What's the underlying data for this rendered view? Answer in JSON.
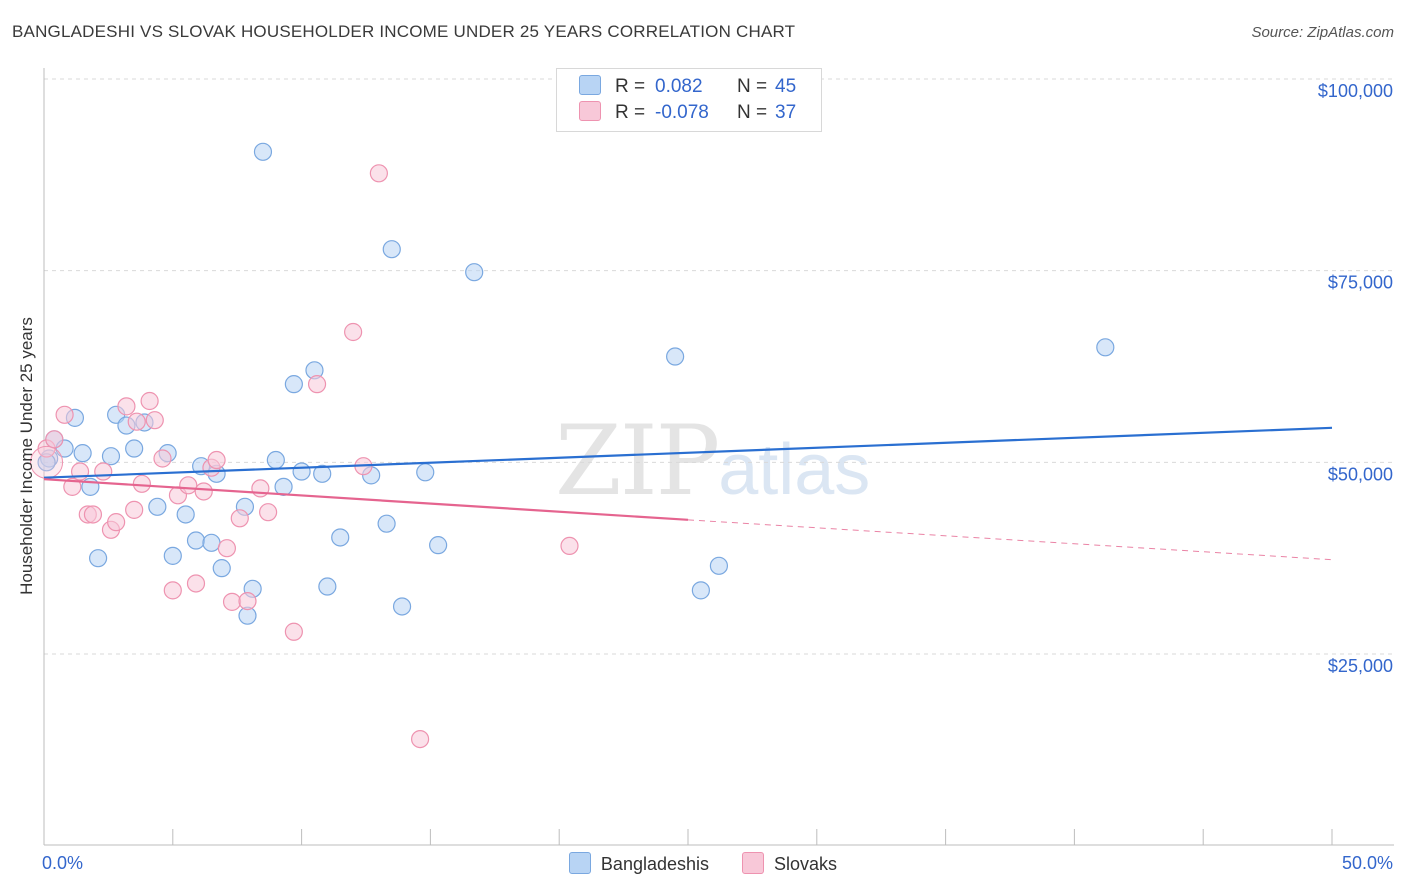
{
  "title": "BANGLADESHI VS SLOVAK HOUSEHOLDER INCOME UNDER 25 YEARS CORRELATION CHART",
  "source": "Source: ZipAtlas.com",
  "watermark": {
    "zip": "ZIP",
    "atlas": "atlas"
  },
  "legend_top": [
    {
      "r_label": "R =",
      "r_value": "0.082",
      "n_label": "N =",
      "n_value": "45"
    },
    {
      "r_label": "R =",
      "r_value": "-0.078",
      "n_label": "N =",
      "n_value": "37"
    }
  ],
  "legend_bottom": [
    "Bangladeshis",
    "Slovaks"
  ],
  "colors": {
    "blue_fill": "#b8d4f4",
    "blue_stroke": "#7aa8e0",
    "blue_line": "#2a6fd1",
    "pink_fill": "#f8c8d8",
    "pink_stroke": "#ee93b0",
    "pink_line": "#e5648f",
    "grid": "#d9d9d9",
    "axis_text": "#3366cc"
  },
  "chart_data": {
    "type": "scatter",
    "title": "BANGLADESHI VS SLOVAK HOUSEHOLDER INCOME UNDER 25 YEARS CORRELATION CHART",
    "xlabel": "",
    "ylabel": "Householder Income Under 25 years",
    "xlim": [
      0,
      50
    ],
    "ylim": [
      0,
      105000
    ],
    "x_tick_labels": [
      "0.0%",
      "50.0%"
    ],
    "y_ticks": [
      25000,
      50000,
      75000,
      100000
    ],
    "y_tick_labels": [
      "$25,000",
      "$50,000",
      "$75,000",
      "$100,000"
    ],
    "grid": true,
    "legend": "top-center",
    "series": [
      {
        "name": "Bangladeshis",
        "r": 0.082,
        "n": 45,
        "trend": {
          "x": [
            0,
            50
          ],
          "y": [
            48000,
            54500
          ]
        },
        "points": [
          [
            0.2,
            50500
          ],
          [
            0.4,
            53000
          ],
          [
            0.8,
            51800
          ],
          [
            1.2,
            55800
          ],
          [
            1.5,
            51200
          ],
          [
            1.8,
            46800
          ],
          [
            2.1,
            37500
          ],
          [
            2.6,
            50800
          ],
          [
            2.8,
            56200
          ],
          [
            3.2,
            54800
          ],
          [
            3.5,
            51800
          ],
          [
            3.9,
            55200
          ],
          [
            4.4,
            44200
          ],
          [
            4.8,
            51200
          ],
          [
            5.0,
            37800
          ],
          [
            5.5,
            43200
          ],
          [
            5.9,
            39800
          ],
          [
            6.1,
            49500
          ],
          [
            6.5,
            39500
          ],
          [
            6.7,
            48500
          ],
          [
            6.9,
            36200
          ],
          [
            7.8,
            44200
          ],
          [
            8.1,
            33500
          ],
          [
            7.9,
            30000
          ],
          [
            8.5,
            90500
          ],
          [
            9.0,
            50300
          ],
          [
            9.3,
            46800
          ],
          [
            9.7,
            60200
          ],
          [
            10.0,
            48800
          ],
          [
            10.5,
            62000
          ],
          [
            10.8,
            48500
          ],
          [
            11.0,
            33800
          ],
          [
            11.5,
            40200
          ],
          [
            12.7,
            48300
          ],
          [
            13.3,
            42000
          ],
          [
            13.5,
            77800
          ],
          [
            13.9,
            31200
          ],
          [
            14.8,
            48700
          ],
          [
            15.3,
            39200
          ],
          [
            16.7,
            74800
          ],
          [
            24.5,
            63800
          ],
          [
            25.5,
            33300
          ],
          [
            26.2,
            36500
          ],
          [
            41.2,
            65000
          ],
          [
            0.1,
            50000
          ]
        ]
      },
      {
        "name": "Slovaks",
        "r": -0.078,
        "n": 37,
        "trend": {
          "x": [
            0,
            25
          ],
          "y": [
            47800,
            42500
          ]
        },
        "trend_dashed": {
          "x": [
            25,
            50
          ],
          "y": [
            42500,
            37300
          ]
        },
        "points": [
          [
            0.1,
            51800
          ],
          [
            0.4,
            53000
          ],
          [
            0.8,
            56200
          ],
          [
            1.1,
            46800
          ],
          [
            1.4,
            48800
          ],
          [
            1.7,
            43200
          ],
          [
            1.9,
            43200
          ],
          [
            2.3,
            48800
          ],
          [
            2.6,
            41200
          ],
          [
            2.8,
            42200
          ],
          [
            3.2,
            57300
          ],
          [
            3.5,
            43800
          ],
          [
            3.6,
            55300
          ],
          [
            3.8,
            47200
          ],
          [
            4.1,
            58000
          ],
          [
            4.3,
            55500
          ],
          [
            4.6,
            50500
          ],
          [
            5.0,
            33300
          ],
          [
            5.2,
            45700
          ],
          [
            5.6,
            47000
          ],
          [
            5.9,
            34200
          ],
          [
            6.2,
            46200
          ],
          [
            6.5,
            49300
          ],
          [
            6.7,
            50300
          ],
          [
            7.1,
            38800
          ],
          [
            7.3,
            31800
          ],
          [
            7.6,
            42700
          ],
          [
            7.9,
            31900
          ],
          [
            8.4,
            46600
          ],
          [
            8.7,
            43500
          ],
          [
            9.7,
            27900
          ],
          [
            10.6,
            60200
          ],
          [
            12.0,
            67000
          ],
          [
            12.4,
            49500
          ],
          [
            13.0,
            87700
          ],
          [
            14.6,
            13900
          ],
          [
            20.4,
            39100
          ]
        ]
      }
    ]
  }
}
